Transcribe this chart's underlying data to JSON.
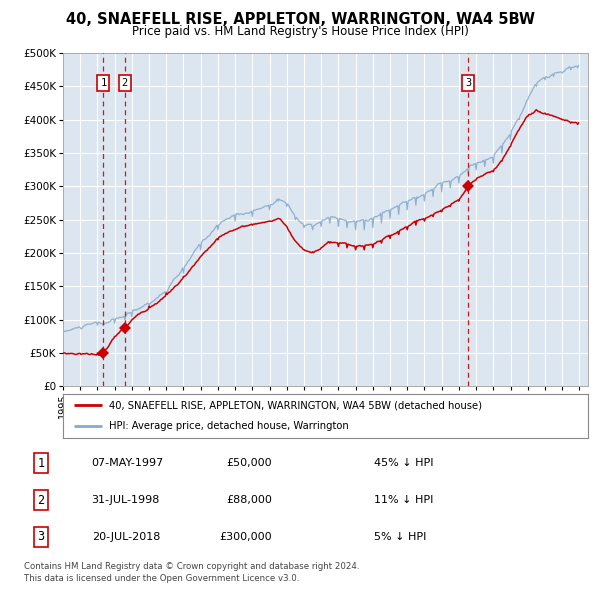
{
  "title": "40, SNAEFELL RISE, APPLETON, WARRINGTON, WA4 5BW",
  "subtitle": "Price paid vs. HM Land Registry's House Price Index (HPI)",
  "ylim": [
    0,
    500000
  ],
  "yticks": [
    0,
    50000,
    100000,
    150000,
    200000,
    250000,
    300000,
    350000,
    400000,
    450000,
    500000
  ],
  "ytick_labels": [
    "£0",
    "£50K",
    "£100K",
    "£150K",
    "£200K",
    "£250K",
    "£300K",
    "£350K",
    "£400K",
    "£450K",
    "£500K"
  ],
  "xlim_start": 1995.0,
  "xlim_end": 2025.5,
  "plot_bg_color": "#dce6f0",
  "grid_color": "#ffffff",
  "red_line_color": "#cc0000",
  "blue_line_color": "#88aacc",
  "sale_points": [
    {
      "date_num": 1997.35,
      "price": 50000,
      "label": "1"
    },
    {
      "date_num": 1998.58,
      "price": 88000,
      "label": "2"
    },
    {
      "date_num": 2018.55,
      "price": 300000,
      "label": "3"
    }
  ],
  "vline_color": "#cc0000",
  "sale_marker_color": "#cc0000",
  "legend_red_label": "40, SNAEFELL RISE, APPLETON, WARRINGTON, WA4 5BW (detached house)",
  "legend_blue_label": "HPI: Average price, detached house, Warrington",
  "table_entries": [
    {
      "num": "1",
      "date": "07-MAY-1997",
      "price": "£50,000",
      "hpi": "45% ↓ HPI"
    },
    {
      "num": "2",
      "date": "31-JUL-1998",
      "price": "£88,000",
      "hpi": "11% ↓ HPI"
    },
    {
      "num": "3",
      "date": "20-JUL-2018",
      "price": "£300,000",
      "hpi": "5% ↓ HPI"
    }
  ],
  "footnote": "Contains HM Land Registry data © Crown copyright and database right 2024.\nThis data is licensed under the Open Government Licence v3.0.",
  "xtick_years": [
    1995,
    1996,
    1997,
    1998,
    1999,
    2000,
    2001,
    2002,
    2003,
    2004,
    2005,
    2006,
    2007,
    2008,
    2009,
    2010,
    2011,
    2012,
    2013,
    2014,
    2015,
    2016,
    2017,
    2018,
    2019,
    2020,
    2021,
    2022,
    2023,
    2024,
    2025
  ],
  "hpi_anchors": [
    [
      1995.0,
      82000
    ],
    [
      1996.0,
      88000
    ],
    [
      1997.0,
      92000
    ],
    [
      1997.35,
      91000
    ],
    [
      1998.0,
      95000
    ],
    [
      1998.58,
      100000
    ],
    [
      1999.0,
      105000
    ],
    [
      2000.0,
      120000
    ],
    [
      2001.0,
      140000
    ],
    [
      2002.0,
      170000
    ],
    [
      2003.0,
      205000
    ],
    [
      2004.0,
      235000
    ],
    [
      2005.0,
      248000
    ],
    [
      2006.0,
      255000
    ],
    [
      2007.0,
      265000
    ],
    [
      2007.5,
      278000
    ],
    [
      2008.0,
      270000
    ],
    [
      2008.5,
      250000
    ],
    [
      2009.0,
      238000
    ],
    [
      2009.5,
      235000
    ],
    [
      2010.0,
      240000
    ],
    [
      2010.5,
      245000
    ],
    [
      2011.0,
      240000
    ],
    [
      2011.5,
      238000
    ],
    [
      2012.0,
      235000
    ],
    [
      2012.5,
      235000
    ],
    [
      2013.0,
      238000
    ],
    [
      2013.5,
      245000
    ],
    [
      2014.0,
      252000
    ],
    [
      2014.5,
      258000
    ],
    [
      2015.0,
      265000
    ],
    [
      2015.5,
      272000
    ],
    [
      2016.0,
      278000
    ],
    [
      2016.5,
      285000
    ],
    [
      2017.0,
      292000
    ],
    [
      2017.5,
      298000
    ],
    [
      2018.0,
      305000
    ],
    [
      2018.55,
      318000
    ],
    [
      2019.0,
      325000
    ],
    [
      2019.5,
      330000
    ],
    [
      2020.0,
      335000
    ],
    [
      2020.5,
      350000
    ],
    [
      2021.0,
      370000
    ],
    [
      2021.5,
      400000
    ],
    [
      2022.0,
      430000
    ],
    [
      2022.5,
      450000
    ],
    [
      2023.0,
      460000
    ],
    [
      2023.5,
      465000
    ],
    [
      2024.0,
      470000
    ],
    [
      2024.5,
      475000
    ],
    [
      2024.9,
      478000
    ]
  ],
  "pp_anchors": [
    [
      1995.0,
      50000
    ],
    [
      1997.0,
      50000
    ],
    [
      1997.35,
      50000
    ],
    [
      1998.0,
      75000
    ],
    [
      1998.58,
      88000
    ],
    [
      1999.0,
      100000
    ],
    [
      2000.0,
      120000
    ],
    [
      2001.0,
      140000
    ],
    [
      2002.0,
      165000
    ],
    [
      2003.0,
      195000
    ],
    [
      2004.0,
      220000
    ],
    [
      2005.0,
      235000
    ],
    [
      2006.0,
      242000
    ],
    [
      2007.0,
      248000
    ],
    [
      2007.5,
      252000
    ],
    [
      2008.0,
      240000
    ],
    [
      2008.5,
      218000
    ],
    [
      2009.0,
      205000
    ],
    [
      2009.5,
      202000
    ],
    [
      2010.0,
      208000
    ],
    [
      2010.5,
      215000
    ],
    [
      2011.0,
      210000
    ],
    [
      2011.5,
      208000
    ],
    [
      2012.0,
      205000
    ],
    [
      2012.5,
      205000
    ],
    [
      2013.0,
      208000
    ],
    [
      2013.5,
      215000
    ],
    [
      2014.0,
      222000
    ],
    [
      2014.5,
      228000
    ],
    [
      2015.0,
      235000
    ],
    [
      2015.5,
      242000
    ],
    [
      2016.0,
      248000
    ],
    [
      2016.5,
      255000
    ],
    [
      2017.0,
      262000
    ],
    [
      2017.5,
      270000
    ],
    [
      2018.0,
      278000
    ],
    [
      2018.55,
      300000
    ],
    [
      2019.0,
      310000
    ],
    [
      2019.5,
      318000
    ],
    [
      2020.0,
      322000
    ],
    [
      2020.5,
      338000
    ],
    [
      2021.0,
      360000
    ],
    [
      2021.5,
      385000
    ],
    [
      2022.0,
      405000
    ],
    [
      2022.5,
      415000
    ],
    [
      2023.0,
      410000
    ],
    [
      2023.5,
      405000
    ],
    [
      2024.0,
      400000
    ],
    [
      2024.5,
      395000
    ],
    [
      2024.9,
      393000
    ]
  ]
}
